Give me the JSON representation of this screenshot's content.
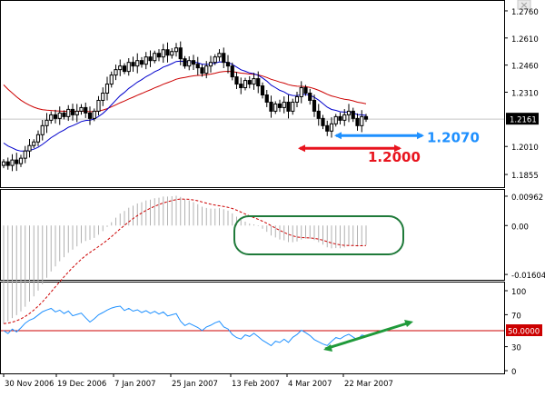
{
  "window": {
    "close_glyph": "×"
  },
  "colors": {
    "price": "#000000",
    "ma_fast": "#0000cc",
    "ma_slow": "#cc0000",
    "macd_hist": "#b0b0b0",
    "macd_signal": "#cc0000",
    "rsi": "#1e90ff",
    "level_50": "#cc0000",
    "annotation_blue": "#1e90ff",
    "annotation_red": "#e8141e",
    "annotation_green": "#1f9a3a",
    "highlight_box": "#1f7a3a"
  },
  "chart_data": [
    {
      "type": "candlestick",
      "panel": "price",
      "ylim": [
        1.18,
        1.28
      ],
      "y_ticks": [
        "1.2760",
        "1.2610",
        "1.2460",
        "1.2310",
        "1.2161",
        "1.2010",
        "1.1855"
      ],
      "current_price": "1.2161",
      "closes": [
        1.1925,
        1.1905,
        1.1935,
        1.1915,
        1.1945,
        1.1985,
        1.2015,
        1.2035,
        1.2075,
        1.2125,
        1.2155,
        1.2185,
        1.2165,
        1.2195,
        1.2175,
        1.2215,
        1.2185,
        1.2205,
        1.2225,
        1.2195,
        1.2165,
        1.2205,
        1.2265,
        1.2305,
        1.2355,
        1.2405,
        1.2435,
        1.2455,
        1.2425,
        1.2475,
        1.2455,
        1.2485,
        1.2465,
        1.2505,
        1.2485,
        1.2525,
        1.2505,
        1.2545,
        1.2515,
        1.2535,
        1.2555,
        1.2495,
        1.2455,
        1.2485,
        1.2465,
        1.2445,
        1.2415,
        1.2455,
        1.2475,
        1.2505,
        1.2525,
        1.2475,
        1.2455,
        1.2395,
        1.2355,
        1.2335,
        1.2375,
        1.2355,
        1.2385,
        1.2345,
        1.2295,
        1.2255,
        1.2205,
        1.2245,
        1.2225,
        1.2255,
        1.2205,
        1.2255,
        1.2285,
        1.2335,
        1.2305,
        1.2265,
        1.2205,
        1.2165,
        1.2125,
        1.2095,
        1.2135,
        1.2175,
        1.2155,
        1.2185,
        1.2205,
        1.2165,
        1.2125,
        1.2175,
        1.2161
      ]
    },
    {
      "type": "annotation",
      "panel": "price",
      "labels": [
        {
          "text": "1.2070",
          "color": "blue",
          "level": 1.207
        },
        {
          "text": "1.2000",
          "color": "red",
          "level": 1.2
        }
      ]
    },
    {
      "type": "bar",
      "panel": "macd",
      "ylim": [
        -0.0172,
        0.0105
      ],
      "y_ticks": [
        "0.00962",
        "0.00",
        "-0.01604"
      ]
    },
    {
      "type": "line",
      "panel": "rsi",
      "ylim": [
        0,
        100
      ],
      "y_ticks": [
        "100",
        "70",
        "30",
        "0"
      ],
      "level_label": "50.0000",
      "level": 50
    },
    {
      "type": "axis",
      "x_labels": [
        "30 Nov 2006",
        "19 Dec 2006",
        "7 Jan 2007",
        "25 Jan 2007",
        "13 Feb 2007",
        "4 Mar 2007",
        "22 Mar 2007"
      ]
    }
  ]
}
